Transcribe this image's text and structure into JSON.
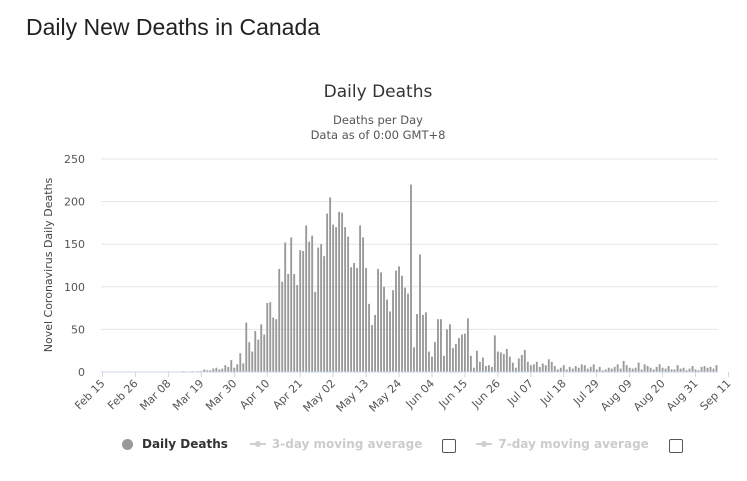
{
  "page": {
    "title": "Daily New Deaths in Canada"
  },
  "legend": {
    "items": [
      {
        "label": "Daily Deaths",
        "color": "#999999",
        "active": true
      },
      {
        "label": "3-day moving average",
        "active": false
      },
      {
        "label": "7-day moving average",
        "active": false
      }
    ]
  },
  "chart_data": {
    "type": "bar",
    "title": "Daily Deaths",
    "subtitle_lines": [
      "Deaths per Day",
      "Data as of 0:00 GMT+8"
    ],
    "ylabel": "Novel Coronavirus Daily Deaths",
    "xlabel": "",
    "ylim": [
      0,
      250
    ],
    "yticks": [
      0,
      50,
      100,
      150,
      200,
      250
    ],
    "grid": true,
    "bar_color": "#999999",
    "start_date": "2020-02-15",
    "xtick_labels": [
      "Feb 15",
      "Feb 26",
      "Mar 08",
      "Mar 19",
      "Mar 30",
      "Apr 10",
      "Apr 21",
      "May 02",
      "May 13",
      "May 24",
      "Jun 04",
      "Jun 15",
      "Jun 26",
      "Jul 07",
      "Jul 18",
      "Jul 29",
      "Aug 09",
      "Aug 20",
      "Aug 31",
      "Sep 11"
    ],
    "series": [
      {
        "name": "Daily Deaths",
        "values": [
          0,
          0,
          0,
          0,
          0,
          0,
          0,
          0,
          0,
          0,
          0,
          0,
          0,
          0,
          0,
          0,
          0,
          0,
          0,
          0,
          0,
          0,
          0,
          0,
          0,
          0,
          0,
          1,
          0,
          0,
          1,
          0,
          1,
          1,
          3,
          2,
          2,
          4,
          5,
          3,
          4,
          8,
          6,
          14,
          5,
          9,
          22,
          10,
          58,
          35,
          24,
          48,
          38,
          56,
          44,
          81,
          82,
          64,
          62,
          121,
          106,
          152,
          115,
          158,
          115,
          102,
          143,
          142,
          172,
          153,
          160,
          94,
          146,
          150,
          136,
          186,
          205,
          173,
          170,
          188,
          187,
          170,
          159,
          123,
          128,
          122,
          172,
          158,
          122,
          80,
          55,
          67,
          121,
          117,
          100,
          85,
          71,
          96,
          119,
          124,
          113,
          99,
          92,
          220,
          29,
          68,
          138,
          67,
          70,
          24,
          18,
          35,
          62,
          62,
          19,
          50,
          56,
          28,
          33,
          40,
          44,
          45,
          63,
          19,
          5,
          25,
          12,
          17,
          7,
          8,
          6,
          43,
          24,
          23,
          21,
          27,
          18,
          11,
          5,
          16,
          20,
          26,
          12,
          8,
          9,
          12,
          6,
          10,
          8,
          15,
          12,
          7,
          3,
          5,
          8,
          3,
          6,
          4,
          7,
          5,
          9,
          8,
          4,
          6,
          9,
          3,
          6,
          2,
          3,
          5,
          4,
          6,
          9,
          4,
          13,
          8,
          5,
          4,
          5,
          11,
          3,
          9,
          7,
          5,
          3,
          6,
          9,
          5,
          4,
          7,
          3,
          3,
          8,
          4,
          5,
          2,
          4,
          7,
          3,
          2,
          6,
          7,
          5,
          6,
          4,
          8
        ]
      }
    ]
  }
}
